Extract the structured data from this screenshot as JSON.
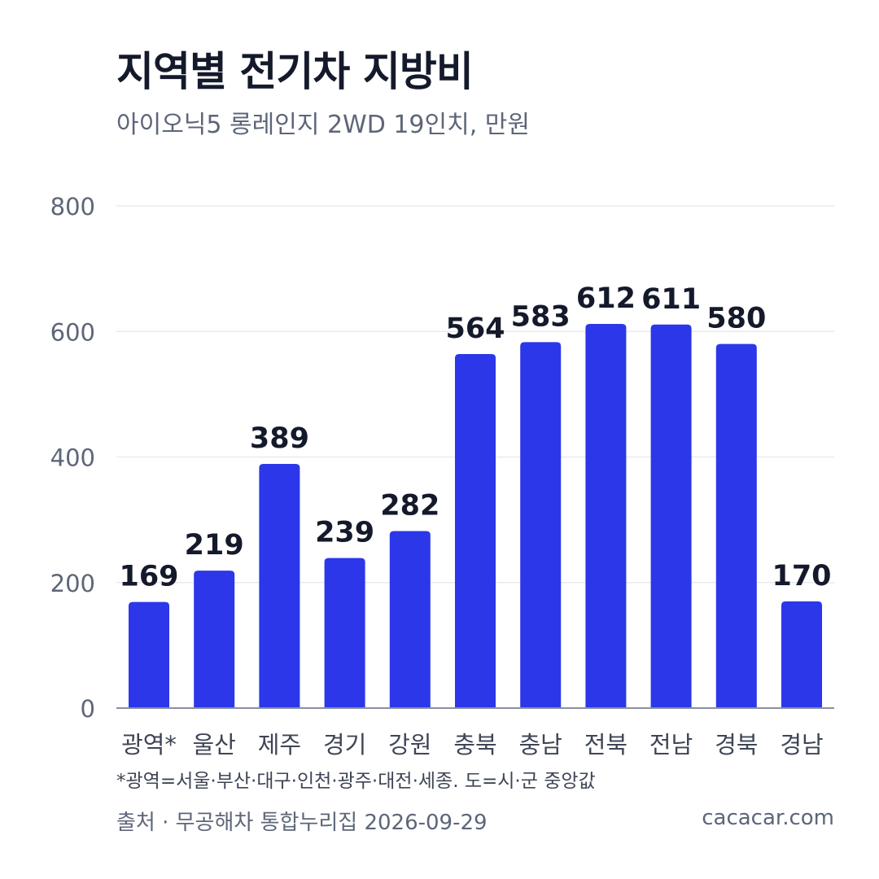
{
  "chart_data": {
    "type": "bar",
    "title": "지역별 전기차 지방비",
    "subtitle": "아이오닉5 롱레인지 2WD 19인치, 만원",
    "categories": [
      "광역*",
      "울산",
      "제주",
      "경기",
      "강원",
      "충북",
      "충남",
      "전북",
      "전남",
      "경북",
      "경남"
    ],
    "values": [
      169,
      219,
      389,
      239,
      282,
      564,
      583,
      612,
      611,
      580,
      170
    ],
    "ylim": [
      0,
      800
    ],
    "yticks": [
      0,
      200,
      400,
      600,
      800
    ],
    "grid": true,
    "bar_color": "#2b37e8",
    "footnote": "*광역=서울·부산·대구·인천·광주·대전·세종. 도=시·군 중앙값",
    "source": "출처 · 무공해차 통합누리집 2026-09-29",
    "site": "cacacar.com"
  }
}
